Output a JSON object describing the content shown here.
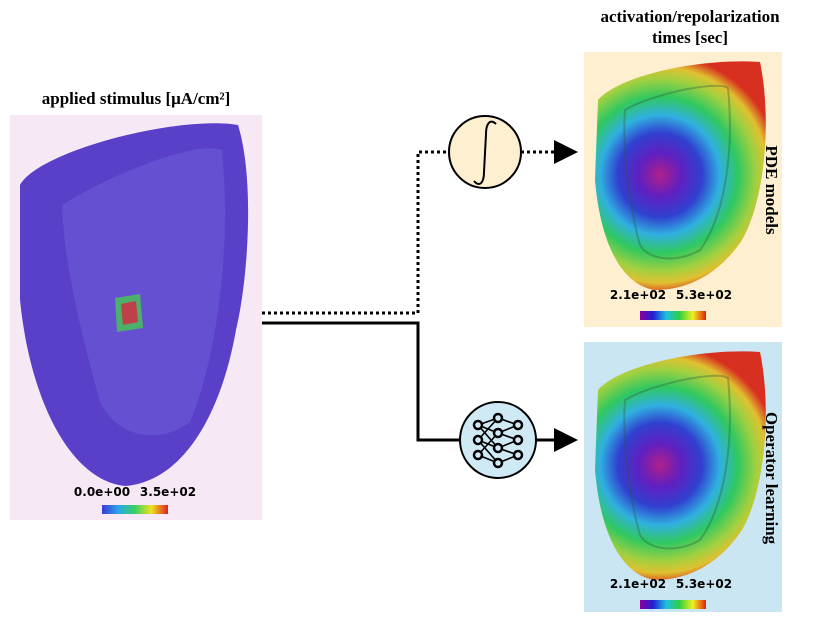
{
  "left_panel": {
    "title": "applied stimulus [μA/cm²]",
    "colorbar": {
      "min_label": "0.0e+00",
      "max_label": "3.5e+02"
    }
  },
  "header": {
    "lines": [
      "activation/repolarization",
      "times [sec]"
    ]
  },
  "top_panel": {
    "label": "PDE models",
    "colorbar": {
      "min_label": "2.1e+02",
      "max_label": "5.3e+02"
    }
  },
  "bottom_panel": {
    "label": "Operator learning",
    "colorbar": {
      "min_label": "2.1e+02",
      "max_label": "5.3e+02"
    }
  }
}
